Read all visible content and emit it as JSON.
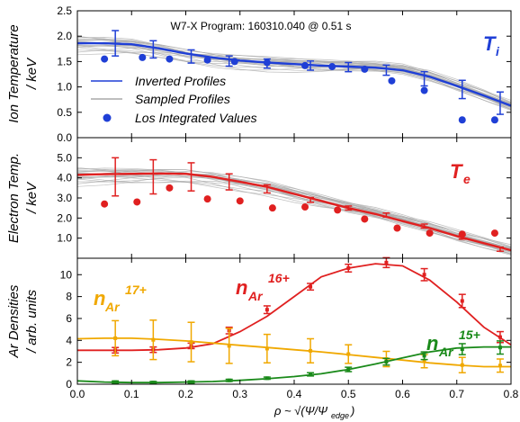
{
  "figure": {
    "annotation": "W7-X Program: 160310.040 @ 0.51 s",
    "xlabel": "ρ ~ √(Ψ/Ψ",
    "xlabel_sub": "edge",
    "xlabel_end": ")"
  },
  "colors": {
    "blue": "#1f3fd6",
    "red": "#e02020",
    "green": "#1a8a1a",
    "orange": "#f0a800",
    "gray": "#a8a8a8"
  },
  "legend": {
    "inverted": "Inverted Profiles",
    "sampled": "Sampled Profiles",
    "los": "Los Integrated Values"
  },
  "chart_data": [
    {
      "type": "line",
      "panel": "ion-temperature",
      "ylabel_line1": "Ion Temperature",
      "ylabel_line2": "/ keV",
      "tag": "T",
      "tag_sub": "i",
      "xlim": [
        0.0,
        0.8
      ],
      "ylim": [
        0.0,
        2.5
      ],
      "yticks": [
        0.0,
        0.5,
        1.0,
        1.5,
        2.0,
        2.5
      ],
      "xticks": [
        0.0,
        0.1,
        0.2,
        0.3,
        0.4,
        0.5,
        0.6,
        0.7,
        0.8
      ],
      "series": [
        {
          "name": "Inverted Profiles",
          "x": [
            0.0,
            0.05,
            0.1,
            0.15,
            0.2,
            0.25,
            0.3,
            0.35,
            0.4,
            0.45,
            0.5,
            0.55,
            0.6,
            0.65,
            0.7,
            0.75,
            0.8
          ],
          "y": [
            1.86,
            1.86,
            1.84,
            1.76,
            1.66,
            1.58,
            1.52,
            1.48,
            1.45,
            1.42,
            1.4,
            1.38,
            1.33,
            1.2,
            1.02,
            0.83,
            0.63
          ]
        },
        {
          "name": "Error bars",
          "x": [
            0.07,
            0.14,
            0.21,
            0.28,
            0.35,
            0.43,
            0.5,
            0.57,
            0.64,
            0.71,
            0.78
          ],
          "y": [
            1.86,
            1.74,
            1.6,
            1.51,
            1.46,
            1.42,
            1.39,
            1.33,
            1.16,
            0.95,
            0.68
          ],
          "err": [
            0.25,
            0.17,
            0.13,
            0.1,
            0.09,
            0.09,
            0.09,
            0.1,
            0.14,
            0.18,
            0.22
          ]
        },
        {
          "name": "Los Integrated Values",
          "x": [
            0.05,
            0.12,
            0.17,
            0.24,
            0.29,
            0.35,
            0.42,
            0.47,
            0.53,
            0.58,
            0.64,
            0.71,
            0.77
          ],
          "y": [
            1.55,
            1.58,
            1.55,
            1.53,
            1.5,
            1.48,
            1.42,
            1.4,
            1.35,
            1.12,
            0.93,
            0.35,
            0.35
          ]
        }
      ]
    },
    {
      "type": "line",
      "panel": "electron-temperature",
      "ylabel_line1": "Electron Temp.",
      "ylabel_line2": "/ keV",
      "tag": "T",
      "tag_sub": "e",
      "xlim": [
        0.0,
        0.8
      ],
      "ylim": [
        0.0,
        6.0
      ],
      "yticks": [
        1.0,
        2.0,
        3.0,
        4.0,
        5.0
      ],
      "series": [
        {
          "name": "Inverted Profiles",
          "x": [
            0.0,
            0.05,
            0.1,
            0.15,
            0.2,
            0.25,
            0.3,
            0.35,
            0.4,
            0.45,
            0.5,
            0.55,
            0.6,
            0.65,
            0.7,
            0.75,
            0.8
          ],
          "y": [
            4.15,
            4.18,
            4.2,
            4.22,
            4.2,
            4.05,
            3.8,
            3.55,
            3.2,
            2.85,
            2.5,
            2.2,
            1.85,
            1.5,
            1.1,
            0.75,
            0.4
          ]
        },
        {
          "name": "Error bars",
          "x": [
            0.07,
            0.14,
            0.21,
            0.28,
            0.35,
            0.43,
            0.5,
            0.57,
            0.64,
            0.71,
            0.78
          ],
          "y": [
            4.05,
            4.05,
            4.05,
            3.8,
            3.45,
            2.9,
            2.5,
            2.15,
            1.6,
            1.05,
            0.45
          ],
          "err": [
            0.95,
            0.85,
            0.7,
            0.4,
            0.2,
            0.12,
            0.1,
            0.1,
            0.1,
            0.1,
            0.1
          ]
        },
        {
          "name": "Los Integrated Values",
          "x": [
            0.05,
            0.11,
            0.17,
            0.24,
            0.3,
            0.36,
            0.42,
            0.48,
            0.53,
            0.59,
            0.65,
            0.71,
            0.77
          ],
          "y": [
            2.7,
            2.8,
            3.5,
            2.95,
            2.85,
            2.5,
            2.55,
            2.4,
            1.95,
            1.5,
            1.25,
            1.2,
            1.25
          ]
        }
      ]
    },
    {
      "type": "line",
      "panel": "ar-densities",
      "ylabel_line1": "Ar Densities",
      "ylabel_line2": "/ arb. units",
      "xlim": [
        0.0,
        0.8
      ],
      "ylim": [
        0.0,
        11.5
      ],
      "yticks": [
        0,
        2,
        4,
        6,
        8,
        10
      ],
      "xticks": [
        0.0,
        0.1,
        0.2,
        0.3,
        0.4,
        0.5,
        0.6,
        0.7,
        0.8
      ],
      "xticklabels": [
        "0.0",
        "0.1",
        "0.2",
        "0.3",
        "0.4",
        "0.5",
        "0.6",
        "0.7",
        "0.8"
      ],
      "series": [
        {
          "name": "n_Ar 16+",
          "label_base": "n",
          "label_sub": "Ar",
          "label_sup": "16+",
          "color": "#e02020",
          "x": [
            0.0,
            0.05,
            0.1,
            0.15,
            0.2,
            0.25,
            0.3,
            0.35,
            0.4,
            0.45,
            0.5,
            0.55,
            0.6,
            0.65,
            0.7,
            0.75,
            0.8
          ],
          "y": [
            3.1,
            3.1,
            3.1,
            3.15,
            3.3,
            3.7,
            4.8,
            6.2,
            8.0,
            9.8,
            10.6,
            11.0,
            10.8,
            9.5,
            7.5,
            5.2,
            3.6
          ],
          "bars_x": [
            0.07,
            0.14,
            0.21,
            0.28,
            0.35,
            0.43,
            0.5,
            0.57,
            0.64,
            0.71,
            0.78
          ],
          "bars_y": [
            3.1,
            3.15,
            3.5,
            4.9,
            6.8,
            8.9,
            10.6,
            11.1,
            10.0,
            7.6,
            4.3
          ],
          "bars_err": [
            0.25,
            0.25,
            0.25,
            0.3,
            0.35,
            0.3,
            0.35,
            0.45,
            0.55,
            0.6,
            0.5
          ]
        },
        {
          "name": "n_Ar 17+",
          "label_base": "n",
          "label_sub": "Ar",
          "label_sup": "17+",
          "color": "#f0a800",
          "x": [
            0.0,
            0.05,
            0.1,
            0.15,
            0.2,
            0.25,
            0.3,
            0.35,
            0.4,
            0.45,
            0.5,
            0.55,
            0.6,
            0.65,
            0.7,
            0.75,
            0.8
          ],
          "y": [
            4.15,
            4.2,
            4.2,
            4.1,
            3.95,
            3.75,
            3.55,
            3.35,
            3.15,
            2.95,
            2.7,
            2.45,
            2.2,
            1.95,
            1.75,
            1.6,
            1.6
          ],
          "bars_x": [
            0.07,
            0.14,
            0.21,
            0.28,
            0.35,
            0.43,
            0.5,
            0.57,
            0.64,
            0.71,
            0.78
          ],
          "bars_y": [
            4.2,
            4.05,
            3.85,
            3.5,
            3.25,
            3.05,
            2.75,
            2.3,
            2.1,
            1.75,
            1.7
          ],
          "bars_err": [
            1.6,
            1.8,
            1.8,
            1.6,
            1.3,
            1.1,
            0.85,
            0.7,
            0.6,
            0.7,
            0.6
          ]
        },
        {
          "name": "n_Ar 15+",
          "label_base": "n",
          "label_sub": "Ar",
          "label_sup": "15+",
          "color": "#1a8a1a",
          "x": [
            0.0,
            0.05,
            0.1,
            0.15,
            0.2,
            0.25,
            0.3,
            0.35,
            0.4,
            0.45,
            0.5,
            0.55,
            0.6,
            0.65,
            0.7,
            0.75,
            0.8
          ],
          "y": [
            0.3,
            0.2,
            0.15,
            0.15,
            0.2,
            0.25,
            0.35,
            0.5,
            0.7,
            0.95,
            1.35,
            1.85,
            2.4,
            2.95,
            3.3,
            3.4,
            3.4
          ],
          "bars_x": [
            0.07,
            0.14,
            0.21,
            0.28,
            0.35,
            0.43,
            0.5,
            0.57,
            0.64,
            0.71,
            0.78
          ],
          "bars_y": [
            0.2,
            0.15,
            0.2,
            0.35,
            0.55,
            0.9,
            1.35,
            2.05,
            2.6,
            3.2,
            3.35
          ],
          "bars_err": [
            0.1,
            0.1,
            0.1,
            0.1,
            0.1,
            0.15,
            0.2,
            0.3,
            0.35,
            0.5,
            0.6
          ]
        }
      ]
    }
  ]
}
